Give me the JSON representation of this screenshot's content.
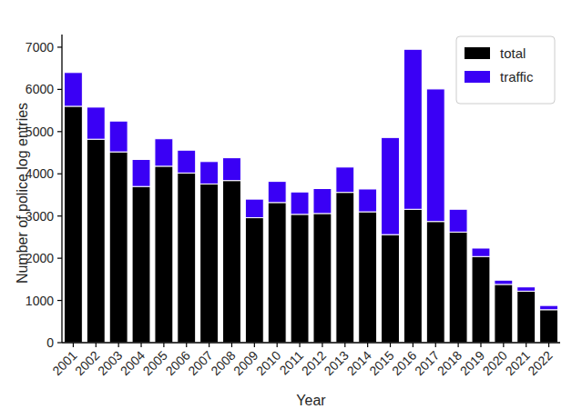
{
  "chart_data": {
    "type": "bar",
    "stacked": true,
    "x_label": "Year",
    "y_label": "Number of police log entries",
    "categories": [
      "2001",
      "2002",
      "2003",
      "2004",
      "2005",
      "2006",
      "2007",
      "2008",
      "2009",
      "2010",
      "2011",
      "2012",
      "2013",
      "2014",
      "2015",
      "2016",
      "2017",
      "2018",
      "2019",
      "2020",
      "2021",
      "2022"
    ],
    "series": [
      {
        "name": "total",
        "color": "#000000",
        "values": [
          5600,
          4820,
          4520,
          3700,
          4180,
          4020,
          3760,
          3840,
          2960,
          3320,
          3040,
          3060,
          3560,
          3100,
          2560,
          3160,
          2870,
          2620,
          2040,
          1380,
          1220,
          780
        ]
      },
      {
        "name": "traffic",
        "color": "#3a00f5",
        "values": [
          800,
          760,
          730,
          640,
          650,
          540,
          530,
          540,
          440,
          500,
          530,
          590,
          600,
          540,
          2300,
          3790,
          3140,
          540,
          200,
          100,
          100,
          100
        ]
      }
    ],
    "ylim": [
      0,
      7300
    ],
    "yticks": [
      0,
      1000,
      2000,
      3000,
      4000,
      5000,
      6000,
      7000
    ],
    "grid": false,
    "legend": "upper right"
  }
}
